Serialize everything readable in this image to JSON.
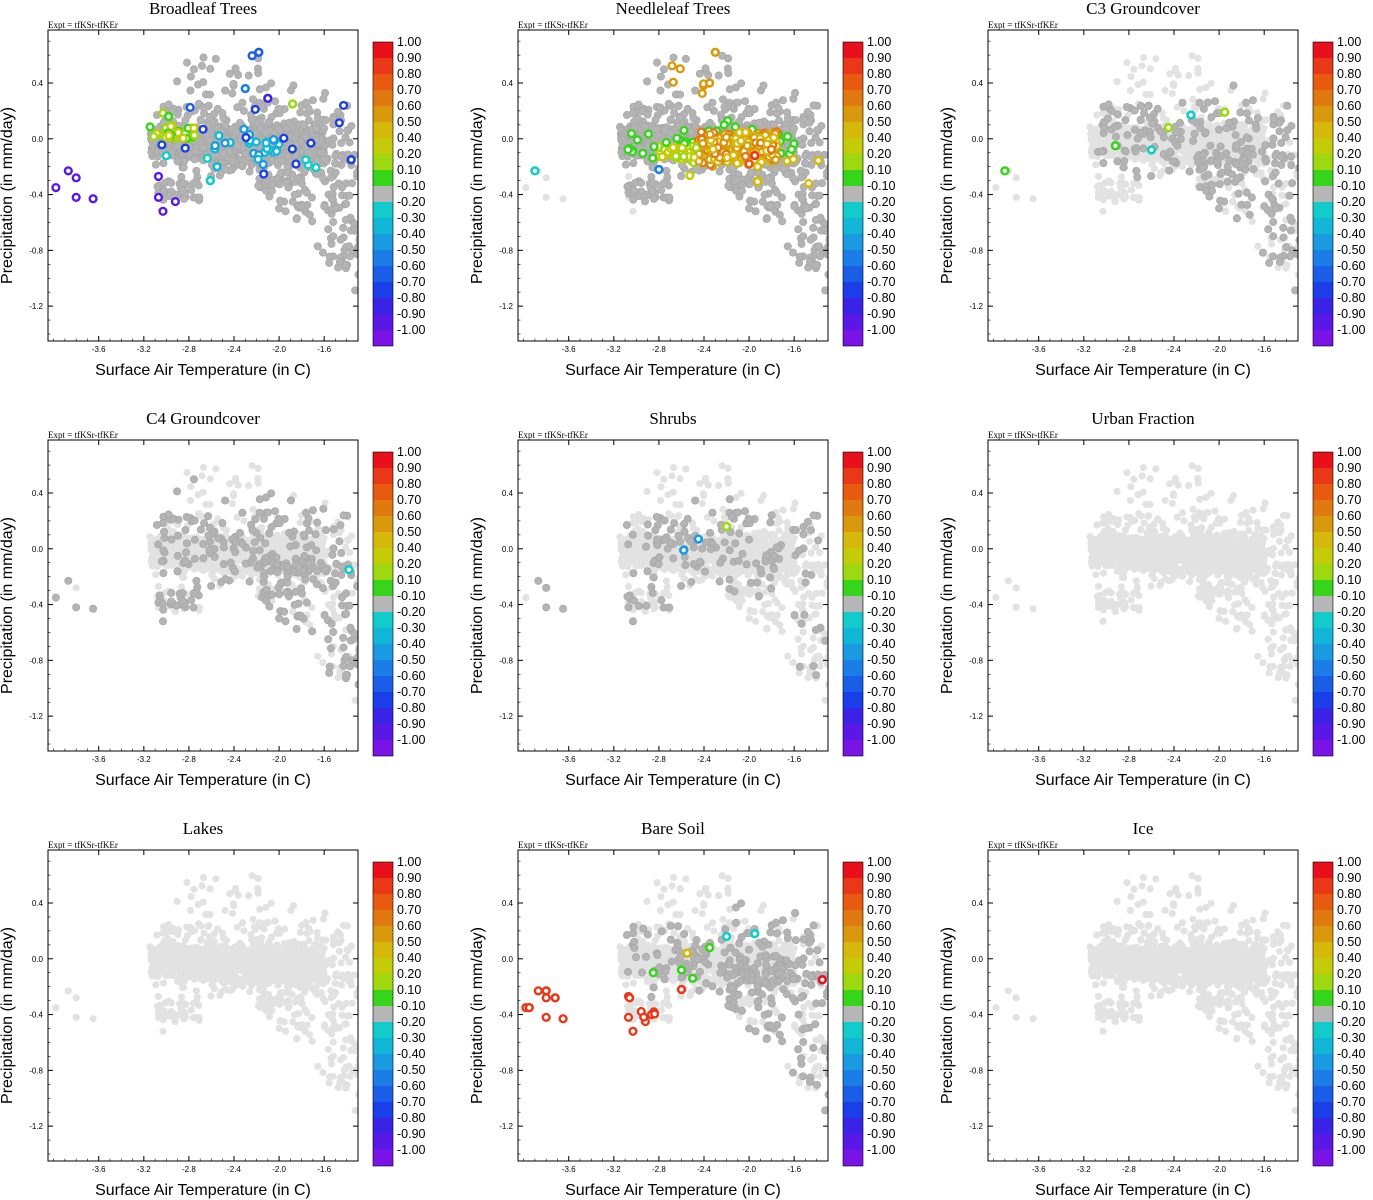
{
  "figure": {
    "expt_label": "Expt = tfKSr-tfKEr",
    "xlabel": "Surface Air Temperature (in C)",
    "ylabel": "Precipitation (in mm/day)",
    "xlim": [
      -4.05,
      -1.3
    ],
    "ylim": [
      -1.45,
      0.78
    ],
    "x_ticks": [
      -3.6,
      -3.2,
      -2.8,
      -2.4,
      -2.0,
      -1.6
    ],
    "x_tick_labels": [
      "-3.6",
      "-3.2",
      "-2.8",
      "-2.4",
      "-2.0",
      "-1.6"
    ],
    "y_ticks": [
      0.4,
      0.0,
      -0.4,
      -0.8,
      -1.2
    ],
    "y_tick_labels": [
      "0.4",
      "0.0",
      "-0.4",
      "-0.8",
      "-1.2"
    ]
  },
  "colorbar": {
    "labels": [
      "1.00",
      "0.90",
      "0.80",
      "0.70",
      "0.60",
      "0.50",
      "0.40",
      "0.20",
      "0.10",
      "-0.10",
      "-0.20",
      "-0.30",
      "-0.40",
      "-0.50",
      "-0.60",
      "-0.70",
      "-0.80",
      "-0.90",
      "-1.00"
    ],
    "colors": [
      "#e8101a",
      "#e83818",
      "#e85a10",
      "#e07a10",
      "#d89a0c",
      "#d6b80a",
      "#c4cc08",
      "#9ed810",
      "#36d41a",
      "#b6b6b6",
      "#12cccc",
      "#12b6d6",
      "#1a9ae0",
      "#1a7ee6",
      "#1a5ee8",
      "#1a3ee8",
      "#3a22e6",
      "#5a18e6",
      "#7a14e6"
    ]
  },
  "chart_data": [
    {
      "type": "scatter",
      "title": "Broadleaf Trees",
      "mode": "broadleaf"
    },
    {
      "type": "scatter",
      "title": "Needleleaf Trees",
      "mode": "needleleaf"
    },
    {
      "type": "scatter",
      "title": "C3 Groundcover",
      "mode": "c3"
    },
    {
      "type": "scatter",
      "title": "C4 Groundcover",
      "mode": "c4"
    },
    {
      "type": "scatter",
      "title": "Shrubs",
      "mode": "shrubs"
    },
    {
      "type": "scatter",
      "title": "Urban Fraction",
      "mode": "urban"
    },
    {
      "type": "scatter",
      "title": "Lakes",
      "mode": "lakes"
    },
    {
      "type": "scatter",
      "title": "Bare Soil",
      "mode": "bare"
    },
    {
      "type": "scatter",
      "title": "Ice",
      "mode": "ice"
    }
  ],
  "colors": {
    "background_point": "#e2e2e2",
    "neutral_point": "#b4b4b4"
  }
}
